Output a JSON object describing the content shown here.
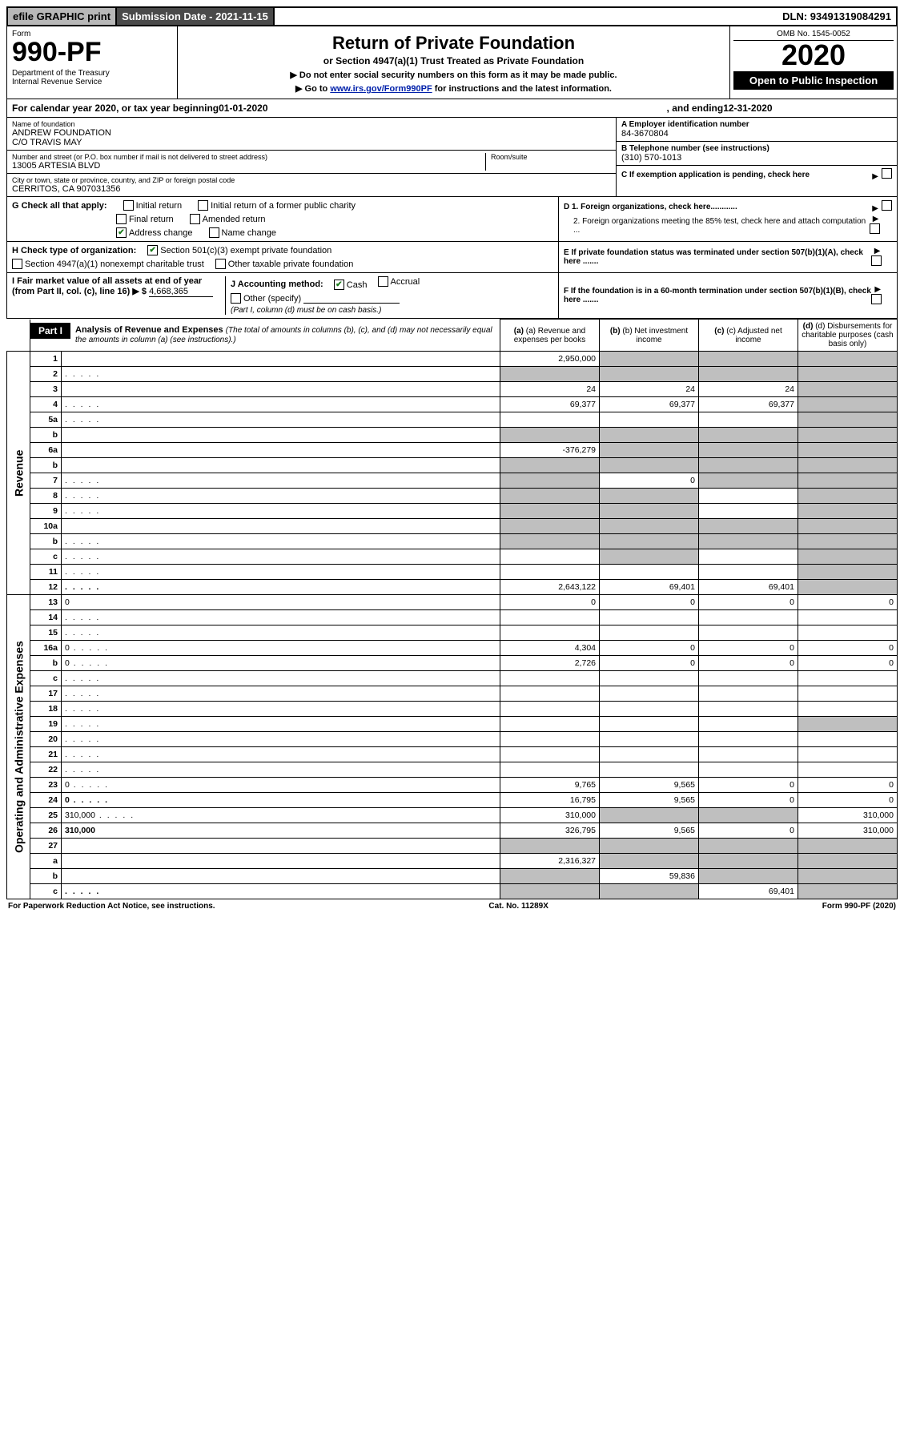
{
  "topbar": {
    "efile": "efile GRAPHIC print",
    "subdate": "Submission Date - 2021-11-15",
    "dln": "DLN: 93491319084291"
  },
  "header": {
    "form_label": "Form",
    "form_num": "990-PF",
    "dept": "Department of the Treasury\nInternal Revenue Service",
    "title": "Return of Private Foundation",
    "subtitle": "or Section 4947(a)(1) Trust Treated as Private Foundation",
    "note1": "▶ Do not enter social security numbers on this form as it may be made public.",
    "note2_pre": "▶ Go to ",
    "note2_link": "www.irs.gov/Form990PF",
    "note2_post": " for instructions and the latest information.",
    "omb": "OMB No. 1545-0052",
    "year": "2020",
    "open": "Open to Public Inspection"
  },
  "calyear": {
    "pre": "For calendar year 2020, or tax year beginning ",
    "begin": "01-01-2020",
    "mid": " , and ending ",
    "end": "12-31-2020"
  },
  "info": {
    "name_label": "Name of foundation",
    "name": "ANDREW FOUNDATION\nC/O TRAVIS MAY",
    "street_label": "Number and street (or P.O. box number if mail is not delivered to street address)",
    "street": "13005 ARTESIA BLVD",
    "room_label": "Room/suite",
    "room": "",
    "city_label": "City or town, state or province, country, and ZIP or foreign postal code",
    "city": "CERRITOS, CA  907031356",
    "ein_label": "A Employer identification number",
    "ein": "84-3670804",
    "phone_label": "B Telephone number (see instructions)",
    "phone": "(310) 570-1013",
    "c_label": "C If exemption application is pending, check here",
    "d1": "D 1. Foreign organizations, check here............",
    "d2": "2. Foreign organizations meeting the 85% test, check here and attach computation ...",
    "e_label": "E If private foundation status was terminated under section 507(b)(1)(A), check here .......",
    "f_label": "F If the foundation is in a 60-month termination under section 507(b)(1)(B), check here ......."
  },
  "g": {
    "lead": "G Check all that apply:",
    "initial": "Initial return",
    "initial_former": "Initial return of a former public charity",
    "final": "Final return",
    "amended": "Amended return",
    "address": "Address change",
    "name": "Name change"
  },
  "h": {
    "lead": "H Check type of organization:",
    "c3": "Section 501(c)(3) exempt private foundation",
    "trust": "Section 4947(a)(1) nonexempt charitable trust",
    "other": "Other taxable private foundation"
  },
  "i": {
    "label": "I Fair market value of all assets at end of year (from Part II, col. (c), line 16) ▶ $",
    "val": "4,668,365"
  },
  "j": {
    "label": "J Accounting method:",
    "cash": "Cash",
    "accrual": "Accrual",
    "other": "Other (specify)",
    "note": "(Part I, column (d) must be on cash basis.)"
  },
  "part1": {
    "tab": "Part I",
    "title": "Analysis of Revenue and Expenses",
    "note": "(The total of amounts in columns (b), (c), and (d) may not necessarily equal the amounts in column (a) (see instructions).)",
    "col_a": "(a) Revenue and expenses per books",
    "col_b": "(b) Net investment income",
    "col_c": "(c) Adjusted net income",
    "col_d": "(d) Disbursements for charitable purposes (cash basis only)"
  },
  "side": {
    "revenue": "Revenue",
    "opex": "Operating and Administrative Expenses"
  },
  "rows": [
    {
      "n": "1",
      "d": "",
      "a": "2,950,000",
      "b": "",
      "c": "",
      "shade": [
        "b",
        "c",
        "d"
      ]
    },
    {
      "n": "2",
      "d": "",
      "a": "",
      "b": "",
      "c": "",
      "shade": [
        "a",
        "b",
        "c",
        "d"
      ],
      "dots": true
    },
    {
      "n": "3",
      "d": "",
      "a": "24",
      "b": "24",
      "c": "24",
      "shade": [
        "d"
      ]
    },
    {
      "n": "4",
      "d": "",
      "a": "69,377",
      "b": "69,377",
      "c": "69,377",
      "shade": [
        "d"
      ],
      "dots": true
    },
    {
      "n": "5a",
      "d": "",
      "a": "",
      "b": "",
      "c": "",
      "shade": [
        "d"
      ],
      "dots": true
    },
    {
      "n": "b",
      "d": "",
      "a": "",
      "b": "",
      "c": "",
      "shade": [
        "a",
        "b",
        "c",
        "d"
      ]
    },
    {
      "n": "6a",
      "d": "",
      "a": "-376,279",
      "b": "",
      "c": "",
      "shade": [
        "b",
        "c",
        "d"
      ]
    },
    {
      "n": "b",
      "d": "",
      "a": "",
      "b": "",
      "c": "",
      "shade": [
        "a",
        "b",
        "c",
        "d"
      ]
    },
    {
      "n": "7",
      "d": "",
      "a": "",
      "b": "0",
      "c": "",
      "shade": [
        "a",
        "c",
        "d"
      ],
      "dots": true
    },
    {
      "n": "8",
      "d": "",
      "a": "",
      "b": "",
      "c": "",
      "shade": [
        "a",
        "b",
        "d"
      ],
      "dots": true
    },
    {
      "n": "9",
      "d": "",
      "a": "",
      "b": "",
      "c": "",
      "shade": [
        "a",
        "b",
        "d"
      ],
      "dots": true
    },
    {
      "n": "10a",
      "d": "",
      "a": "",
      "b": "",
      "c": "",
      "shade": [
        "a",
        "b",
        "c",
        "d"
      ]
    },
    {
      "n": "b",
      "d": "",
      "a": "",
      "b": "",
      "c": "",
      "shade": [
        "a",
        "b",
        "c",
        "d"
      ],
      "dots": true
    },
    {
      "n": "c",
      "d": "",
      "a": "",
      "b": "",
      "c": "",
      "shade": [
        "b",
        "d"
      ],
      "dots": true
    },
    {
      "n": "11",
      "d": "",
      "a": "",
      "b": "",
      "c": "",
      "shade": [
        "d"
      ],
      "dots": true
    },
    {
      "n": "12",
      "d": "",
      "a": "2,643,122",
      "b": "69,401",
      "c": "69,401",
      "shade": [
        "d"
      ],
      "bold": true,
      "dots": true
    },
    {
      "n": "13",
      "d": "0",
      "a": "0",
      "b": "0",
      "c": "0"
    },
    {
      "n": "14",
      "d": "",
      "a": "",
      "b": "",
      "c": "",
      "dots": true
    },
    {
      "n": "15",
      "d": "",
      "a": "",
      "b": "",
      "c": "",
      "dots": true
    },
    {
      "n": "16a",
      "d": "0",
      "a": "4,304",
      "b": "0",
      "c": "0",
      "dots": true
    },
    {
      "n": "b",
      "d": "0",
      "a": "2,726",
      "b": "0",
      "c": "0",
      "dots": true
    },
    {
      "n": "c",
      "d": "",
      "a": "",
      "b": "",
      "c": "",
      "dots": true
    },
    {
      "n": "17",
      "d": "",
      "a": "",
      "b": "",
      "c": "",
      "dots": true
    },
    {
      "n": "18",
      "d": "",
      "a": "",
      "b": "",
      "c": "",
      "dots": true
    },
    {
      "n": "19",
      "d": "",
      "a": "",
      "b": "",
      "c": "",
      "shade": [
        "d"
      ],
      "dots": true
    },
    {
      "n": "20",
      "d": "",
      "a": "",
      "b": "",
      "c": "",
      "dots": true
    },
    {
      "n": "21",
      "d": "",
      "a": "",
      "b": "",
      "c": "",
      "dots": true
    },
    {
      "n": "22",
      "d": "",
      "a": "",
      "b": "",
      "c": "",
      "dots": true
    },
    {
      "n": "23",
      "d": "0",
      "a": "9,765",
      "b": "9,565",
      "c": "0",
      "dots": true
    },
    {
      "n": "24",
      "d": "0",
      "a": "16,795",
      "b": "9,565",
      "c": "0",
      "bold": true,
      "dots": true
    },
    {
      "n": "25",
      "d": "310,000",
      "a": "310,000",
      "b": "",
      "c": "",
      "shade": [
        "b",
        "c"
      ],
      "dots": true
    },
    {
      "n": "26",
      "d": "310,000",
      "a": "326,795",
      "b": "9,565",
      "c": "0",
      "bold": true
    },
    {
      "n": "27",
      "d": "",
      "a": "",
      "b": "",
      "c": "",
      "shade": [
        "a",
        "b",
        "c",
        "d"
      ]
    },
    {
      "n": "a",
      "d": "",
      "a": "2,316,327",
      "b": "",
      "c": "",
      "shade": [
        "b",
        "c",
        "d"
      ],
      "bold": true
    },
    {
      "n": "b",
      "d": "",
      "a": "",
      "b": "59,836",
      "c": "",
      "shade": [
        "a",
        "c",
        "d"
      ],
      "bold": true
    },
    {
      "n": "c",
      "d": "",
      "a": "",
      "b": "",
      "c": "69,401",
      "shade": [
        "a",
        "b",
        "d"
      ],
      "bold": true,
      "dots": true
    }
  ],
  "footer": {
    "left": "For Paperwork Reduction Act Notice, see instructions.",
    "mid": "Cat. No. 11289X",
    "right": "Form 990-PF (2020)"
  }
}
